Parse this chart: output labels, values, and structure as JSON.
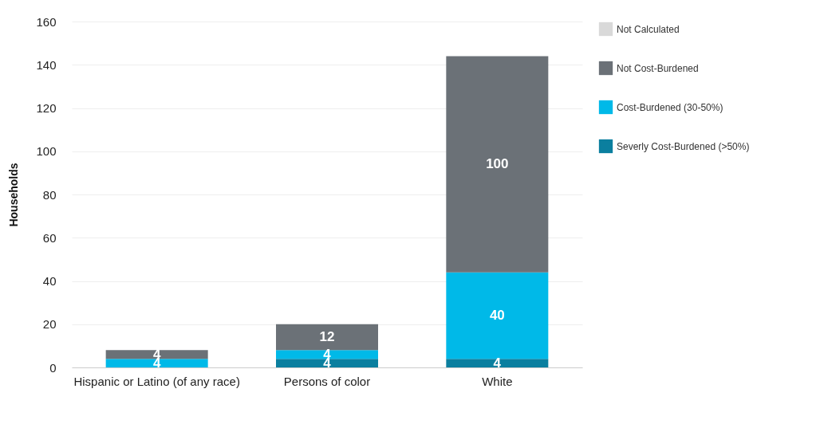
{
  "chart_data": {
    "type": "bar",
    "stacked": true,
    "ylabel": "Households",
    "categories": [
      "Hispanic or Latino (of any race)",
      "Persons of color",
      "White"
    ],
    "series": [
      {
        "name": "Severly Cost-Burdened (>50%)",
        "color": "#0b7f9f",
        "values": [
          null,
          4,
          4
        ]
      },
      {
        "name": "Cost-Burdened (30-50%)",
        "color": "#00b9e8",
        "values": [
          4,
          4,
          40
        ]
      },
      {
        "name": "Not Cost-Burdened",
        "color": "#6b7177",
        "values": [
          4,
          12,
          100
        ]
      },
      {
        "name": "Not Calculated",
        "color": "#d9d9d9",
        "values": [
          null,
          null,
          null
        ]
      }
    ],
    "ylim": [
      0,
      160
    ],
    "yticks": [
      0,
      20,
      40,
      60,
      80,
      100,
      120,
      140,
      160
    ],
    "grid": "y",
    "legend": "right",
    "data_labels": true
  }
}
